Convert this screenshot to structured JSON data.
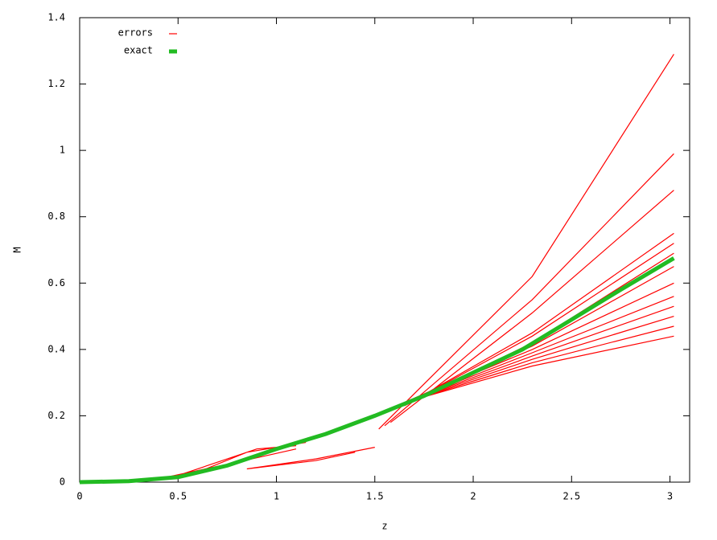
{
  "chart_data": {
    "type": "line",
    "xlabel": "z",
    "ylabel": "M",
    "xlim": [
      0,
      3.1
    ],
    "ylim": [
      0,
      1.4
    ],
    "xticks": [
      0,
      0.5,
      1,
      1.5,
      2,
      2.5,
      3
    ],
    "yticks": [
      0,
      0.2,
      0.4,
      0.6,
      0.8,
      1,
      1.2,
      1.4
    ],
    "legend_position": "upper left",
    "series": [
      {
        "name": "errors",
        "color": "#ff0000",
        "width": 1.2,
        "x": [
          1.52,
          2.3,
          3.02,
          null,
          1.55,
          2.3,
          3.02,
          null,
          1.58,
          2.3,
          3.02,
          null,
          1.65,
          2.3,
          3.02,
          null,
          1.65,
          2.3,
          3.02,
          null,
          1.65,
          2.3,
          3.02,
          null,
          1.65,
          2.3,
          3.02,
          null,
          1.65,
          2.3,
          3.02,
          null,
          1.65,
          2.3,
          3.02,
          null,
          1.65,
          2.3,
          3.02,
          null,
          1.65,
          2.3,
          3.02,
          null,
          1.65,
          2.3,
          3.02,
          null,
          1.65,
          2.3,
          3.02,
          null,
          0.85,
          1.2,
          1.5,
          null,
          0.85,
          1.2,
          1.4,
          null,
          0.5,
          0.9,
          1.1,
          null,
          0.4,
          0.8,
          1.1,
          null,
          0.6,
          0.85,
          1.15
        ],
        "values": [
          0.16,
          0.62,
          1.29,
          null,
          0.17,
          0.55,
          0.99,
          null,
          0.18,
          0.51,
          0.88,
          null,
          0.23,
          0.45,
          0.75,
          null,
          0.23,
          0.44,
          0.72,
          null,
          0.23,
          0.42,
          0.69,
          null,
          0.24,
          0.41,
          0.65,
          null,
          0.24,
          0.4,
          0.6,
          null,
          0.24,
          0.39,
          0.56,
          null,
          0.24,
          0.38,
          0.53,
          null,
          0.24,
          0.37,
          0.5,
          null,
          0.24,
          0.36,
          0.47,
          null,
          0.24,
          0.35,
          0.44,
          null,
          0.04,
          0.07,
          0.105,
          null,
          0.04,
          0.065,
          0.09,
          null,
          0.02,
          0.1,
          0.11,
          null,
          0.01,
          0.06,
          0.1,
          null,
          0.03,
          0.09,
          0.12
        ]
      },
      {
        "name": "exact",
        "color": "#22bb22",
        "width": 5,
        "x": [
          0,
          0.25,
          0.5,
          0.75,
          1,
          1.25,
          1.5,
          1.75,
          2,
          2.25,
          2.5,
          2.75,
          3.02
        ],
        "values": [
          0,
          0.003,
          0.015,
          0.05,
          0.1,
          0.145,
          0.2,
          0.26,
          0.33,
          0.4,
          0.49,
          0.58,
          0.675
        ]
      }
    ]
  }
}
